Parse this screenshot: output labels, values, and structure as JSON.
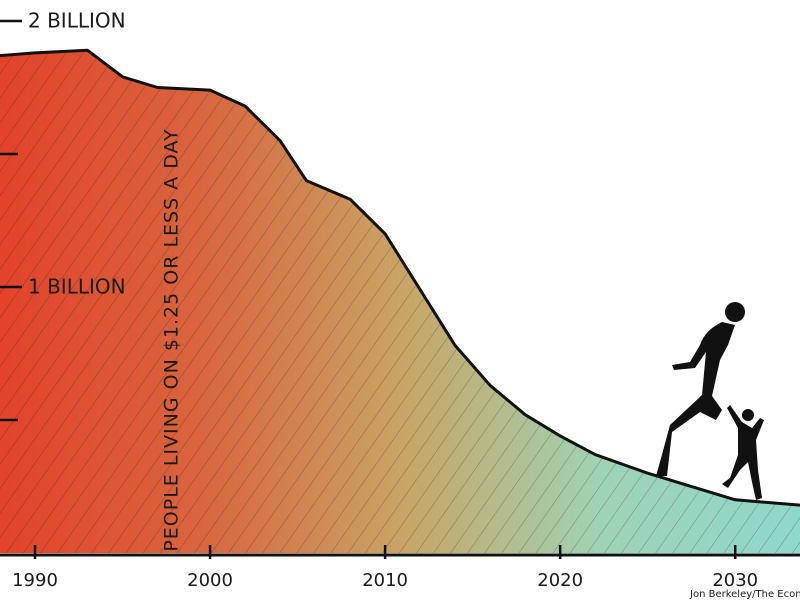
{
  "chart_data": {
    "type": "area",
    "annotation": "PEOPLE LIVING ON $1.25 OR LESS A DAY",
    "credit": "Jon Berkeley/The Economist",
    "x": [
      1988,
      1990,
      1993,
      1995,
      1997,
      2000,
      2002,
      2004,
      2005.5,
      2008,
      2010,
      2012,
      2014,
      2016,
      2018,
      2020,
      2022,
      2025,
      2028,
      2030,
      2033.7
    ],
    "values": [
      1.87,
      1.88,
      1.89,
      1.79,
      1.75,
      1.74,
      1.68,
      1.55,
      1.4,
      1.33,
      1.2,
      0.99,
      0.78,
      0.63,
      0.52,
      0.44,
      0.37,
      0.3,
      0.24,
      0.2,
      0.18
    ],
    "colors": [
      "#e2432a",
      "#d9653e",
      "#c9a464",
      "#9fd3b5",
      "#8ed8cc"
    ],
    "xlim": [
      1988,
      2033.7
    ],
    "xticks": [
      1990,
      2000,
      2010,
      2020,
      2030
    ],
    "ylim": [
      0,
      2
    ],
    "yticks": [
      {
        "value": 1,
        "label": "1 BILLION"
      },
      {
        "value": 2,
        "label": "2 BILLION"
      }
    ],
    "minor_yticks": [
      0.5,
      1.5
    ]
  }
}
